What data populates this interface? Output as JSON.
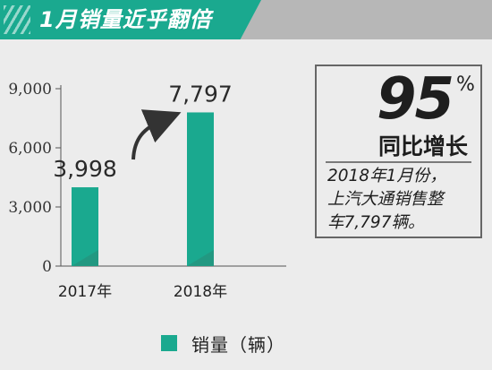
{
  "title": "1月销量近乎翻倍",
  "colors": {
    "accent": "#1aa98f",
    "bar": "#1aa98f",
    "bar_shade": "#2a8a77",
    "header_band": "#b7b7b7",
    "background": "#ececec",
    "arrow": "#333333"
  },
  "chart_data": {
    "type": "bar",
    "categories": [
      "2017年",
      "2018年"
    ],
    "values": [
      3998,
      7797
    ],
    "data_labels": [
      "3,998",
      "7,797"
    ],
    "y_ticks": [
      0,
      3000,
      6000,
      9000
    ],
    "y_tick_labels": [
      "0",
      "3,000",
      "6,000",
      "9,000"
    ],
    "ylim": [
      0,
      9000
    ],
    "grid": false,
    "legend": {
      "label": "销量（辆）",
      "placement": "bottom"
    },
    "annotation": "growth arrow from 2017 bar to 2018 bar"
  },
  "info_box": {
    "growth_value": "95",
    "growth_unit": "%",
    "growth_label": "同比增长",
    "lines": [
      "2018年1月份，",
      "上汽大通销售整",
      "车7,797辆。"
    ]
  }
}
